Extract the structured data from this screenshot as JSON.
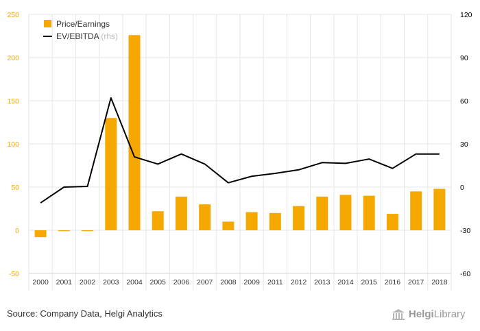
{
  "chart_data": {
    "type": "bar+line",
    "categories": [
      "2000",
      "2001",
      "2002",
      "2003",
      "2004",
      "2005",
      "2006",
      "2007",
      "2008",
      "2009",
      "2011",
      "2012",
      "2013",
      "2014",
      "2015",
      "2016",
      "2017",
      "2018"
    ],
    "series": [
      {
        "name": "Price/Earnings",
        "type": "bar",
        "axis": "left",
        "color": "#f5a800",
        "values": [
          -8,
          -1,
          -1,
          130,
          226,
          22,
          39,
          30,
          10,
          21,
          20,
          28,
          39,
          41,
          40,
          19,
          45,
          48
        ]
      },
      {
        "name": "EV/EBITDA",
        "axis_note": "(rhs)",
        "type": "line",
        "axis": "right",
        "color": "#000000",
        "values": [
          -11,
          0,
          0.5,
          62,
          21,
          16,
          23,
          16,
          3,
          7.5,
          9.5,
          12,
          17,
          16.5,
          19.5,
          13,
          23,
          23
        ]
      }
    ],
    "y_left": {
      "ylim": [
        -50,
        250
      ],
      "ticks": [
        -50,
        0,
        50,
        100,
        150,
        200,
        250
      ],
      "color": "#f5a800"
    },
    "y_right": {
      "ylim": [
        -60,
        120
      ],
      "ticks": [
        -60,
        -30,
        0,
        30,
        60,
        90,
        120
      ],
      "color": "#000000"
    },
    "grid": true,
    "legend_position": "top-left"
  },
  "footer": {
    "source": "Source: Company Data, Helgi Analytics",
    "logo_part1": "Helgi",
    "logo_part2": "Library"
  }
}
